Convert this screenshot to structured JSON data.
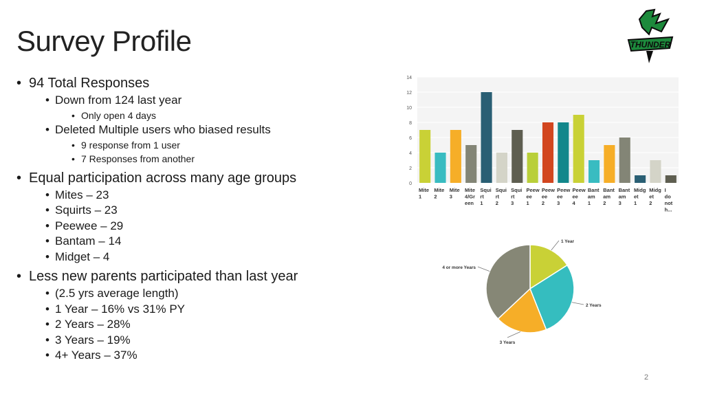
{
  "slide": {
    "title": "Survey Profile",
    "page_number": "2",
    "logo_text": "THUNDER"
  },
  "bullets": [
    {
      "level": 1,
      "text": "94 Total Responses"
    },
    {
      "level": 2,
      "text": "Down from 124 last year"
    },
    {
      "level": 3,
      "text": "Only open 4 days"
    },
    {
      "level": 2,
      "text": "Deleted Multiple users who biased results"
    },
    {
      "level": 3,
      "text": "9 response from 1 user"
    },
    {
      "level": 3,
      "text": "7 Responses from another"
    },
    {
      "level": 1,
      "text": "Equal participation across many age groups"
    },
    {
      "level": 2,
      "text": "Mites – 23"
    },
    {
      "level": 2,
      "text": "Squirts – 23"
    },
    {
      "level": 2,
      "text": "Peewee – 29"
    },
    {
      "level": 2,
      "text": "Bantam – 14"
    },
    {
      "level": 2,
      "text": "Midget – 4"
    },
    {
      "level": 1,
      "text": "Less new parents participated than last year"
    },
    {
      "level": 2,
      "text": "(2.5 yrs average length)"
    },
    {
      "level": 2,
      "text": "1 Year – 16% vs 31% PY"
    },
    {
      "level": 2,
      "text": "2 Years – 28%"
    },
    {
      "level": 2,
      "text": "3 Years – 19%"
    },
    {
      "level": 2,
      "text": "4+ Years – 37%"
    }
  ],
  "chart_data": [
    {
      "type": "bar",
      "ylim": [
        0,
        14
      ],
      "yticks": [
        0,
        2,
        4,
        6,
        8,
        10,
        12,
        14
      ],
      "grid": true,
      "categories": [
        [
          "Mite",
          "1"
        ],
        [
          "Mite",
          "2"
        ],
        [
          "Mite",
          "3"
        ],
        [
          "Mite",
          "4/Gr",
          "een"
        ],
        [
          "Squi",
          "rt",
          "1"
        ],
        [
          "Squi",
          "rt",
          "2"
        ],
        [
          "Squi",
          "rt",
          "3"
        ],
        [
          "Peew",
          "ee",
          "1"
        ],
        [
          "Peew",
          "ee",
          "2"
        ],
        [
          "Peew",
          "ee",
          "3"
        ],
        [
          "Peew",
          "ee",
          "4"
        ],
        [
          "Bant",
          "am",
          "1"
        ],
        [
          "Bant",
          "am",
          "2"
        ],
        [
          "Bant",
          "am",
          "3"
        ],
        [
          "Midg",
          "et",
          "1"
        ],
        [
          "Midg",
          "et",
          "2"
        ],
        [
          "I",
          "do",
          "not",
          "h..."
        ]
      ],
      "values": [
        7,
        4,
        7,
        5,
        12,
        4,
        7,
        4,
        8,
        8,
        9,
        3,
        5,
        6,
        1,
        3,
        1
      ],
      "colors": [
        "#c9d136",
        "#39bcc1",
        "#f6ae28",
        "#838576",
        "#2a5f74",
        "#d4d4c8",
        "#5e5e50",
        "#b9cf39",
        "#d2461f",
        "#12878b",
        "#c9d136",
        "#39bcc1",
        "#f6ae28",
        "#838576",
        "#2a5f74",
        "#d4d4c8",
        "#5e5e50"
      ]
    },
    {
      "type": "pie",
      "labels": [
        "1 Year",
        "2 Years",
        "3 Years",
        "4 or more Years"
      ],
      "values": [
        16,
        28,
        19,
        37
      ],
      "colors": [
        "#c9d136",
        "#35bdbf",
        "#f6ae28",
        "#868776"
      ]
    }
  ]
}
